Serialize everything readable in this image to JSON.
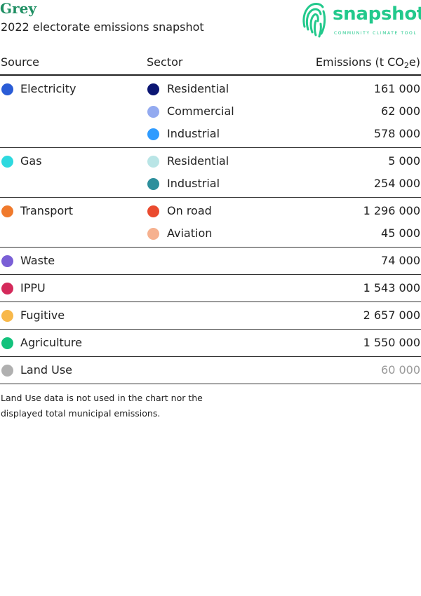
{
  "header": {
    "title": "Grey",
    "subtitle": "2022 electorate emissions snapshot",
    "logo_word": "snapshot",
    "logo_tagline": "COMMUNITY CLIMATE TOOL"
  },
  "table": {
    "col_source": "Source",
    "col_sector": "Sector",
    "col_emissions_prefix": "Emissions (t CO",
    "col_emissions_sub": "2",
    "col_emissions_suffix": "e)",
    "groups": [
      {
        "source": "Electricity",
        "color": "#2a5cd6",
        "rows": [
          {
            "sector": "Residential",
            "color": "#0b1673",
            "value": "161 000"
          },
          {
            "sector": "Commercial",
            "color": "#93aaf0",
            "value": "62 000"
          },
          {
            "sector": "Industrial",
            "color": "#2f9bff",
            "value": "578 000"
          }
        ]
      },
      {
        "source": "Gas",
        "color": "#2ed9df",
        "rows": [
          {
            "sector": "Residential",
            "color": "#b9e5e6",
            "value": "5 000"
          },
          {
            "sector": "Industrial",
            "color": "#2d8f9c",
            "value": "254 000"
          }
        ]
      },
      {
        "source": "Transport",
        "color": "#f07a2c",
        "rows": [
          {
            "sector": "On road",
            "color": "#ea4b2f",
            "value": "1 296 000"
          },
          {
            "sector": "Aviation",
            "color": "#f6b18f",
            "value": "45 000"
          }
        ]
      },
      {
        "source": "Waste",
        "color": "#7a5fd6",
        "rows": [
          {
            "sector": "",
            "value": "74 000"
          }
        ]
      },
      {
        "source": "IPPU",
        "color": "#d42a5b",
        "rows": [
          {
            "sector": "",
            "value": "1 543 000"
          }
        ]
      },
      {
        "source": "Fugitive",
        "color": "#f8b84a",
        "rows": [
          {
            "sector": "",
            "value": "2 657 000"
          }
        ]
      },
      {
        "source": "Agriculture",
        "color": "#13c27c",
        "rows": [
          {
            "sector": "",
            "value": "1 550 000"
          }
        ]
      },
      {
        "source": "Land Use",
        "color": "#b0b0b0",
        "muted": true,
        "rows": [
          {
            "sector": "",
            "value": "60 000"
          }
        ]
      }
    ]
  },
  "note": "Land Use data is not used in the chart nor the displayed total municipal emissions."
}
